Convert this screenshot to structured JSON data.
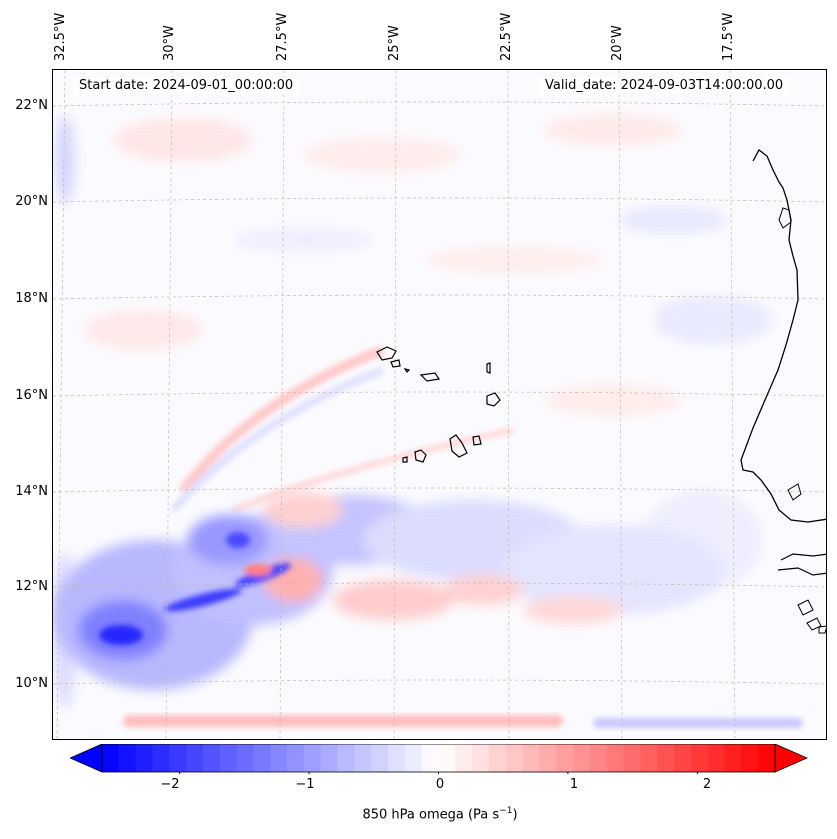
{
  "map": {
    "title_start": "Start date: 2024-09-01_00:00:00",
    "title_valid": "Valid_date: 2024-09-03T14:00:00.00",
    "lon_labels": [
      "32.5°W",
      "30°W",
      "27.5°W",
      "25°W",
      "22.5°W",
      "20°W",
      "17.5°W"
    ],
    "lat_labels": [
      "22°N",
      "20°N",
      "18°N",
      "16°N",
      "14°N",
      "12°N",
      "10°N"
    ],
    "gridlines": "dashed",
    "features": [
      "Cape Verde islands",
      "West African coastline"
    ]
  },
  "colorbar": {
    "label_main": "850 hPa omega (Pa s",
    "label_exp": "−1",
    "label_close": ")",
    "ticks": [
      "−2",
      "−1",
      "0",
      "1",
      "2"
    ],
    "tick_values": [
      -2,
      -1,
      0,
      1,
      2
    ],
    "range": [
      -2.6,
      2.6
    ],
    "levels": 40,
    "colormap": "bwr",
    "extend": "both",
    "colors": {
      "negative": "#0000ff",
      "zero": "#ffffff",
      "positive": "#ff0000"
    }
  }
}
